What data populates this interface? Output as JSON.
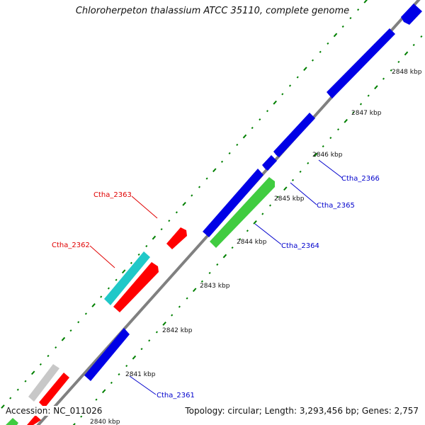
{
  "title": "Chloroherpeton thalassium ATCC 35110, complete genome",
  "footer": {
    "accession": "Accession: NC_011026",
    "summary": "Topology: circular; Length: 3,293,456 bp; Genes: 2,757"
  },
  "colors": {
    "backbone": "#808080",
    "tick": "#008000",
    "blue": "#0000e6",
    "red": "#ff0000",
    "cyan": "#20c8c8",
    "green": "#40cc40",
    "gray": "#c8c8c8",
    "label_red": "#e00000",
    "label_blue": "#0000cc"
  },
  "scale_labels": [
    "2840 kbp",
    "2841 kbp",
    "2842 kbp",
    "2843 kbp",
    "2844 kbp",
    "2845 kbp",
    "2846 kbp",
    "2847 kbp",
    "2848 kbp"
  ],
  "gene_labels": {
    "ctha_2361": "Ctha_2361",
    "ctha_2362": "Ctha_2362",
    "ctha_2363": "Ctha_2363",
    "ctha_2364": "Ctha_2364",
    "ctha_2365": "Ctha_2365",
    "ctha_2366": "Ctha_2366"
  }
}
